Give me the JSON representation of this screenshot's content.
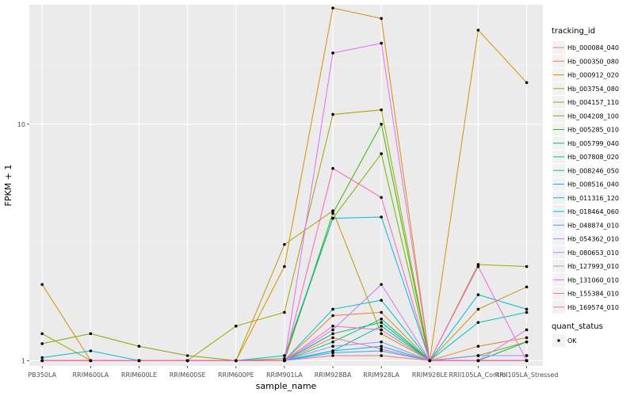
{
  "chart_data": {
    "type": "line",
    "xlabel": "sample_name",
    "ylabel": "FPKM + 1",
    "y_scale": "log10",
    "ylim": [
      0.95,
      32
    ],
    "y_ticks": [
      1,
      10
    ],
    "y_tick_labels": [
      "1",
      "10"
    ],
    "categories": [
      "PB350LA",
      "RRIM600LA",
      "RRIM600LE",
      "RRIM600SE",
      "RRIM600PE",
      "RRIM901LA",
      "RRIM928BA",
      "RRIM928LA",
      "RRIM928LE",
      "RRII105LA_Control",
      "RRII105LA_Stressed"
    ],
    "legend_title": "tracking_id",
    "legend2_title": "quant_status",
    "legend2_entries": [
      {
        "label": "OK",
        "color": "#000000"
      }
    ],
    "series": [
      {
        "name": "Hb_000084_040",
        "color": "#F8766D",
        "values": [
          1.0,
          1.0,
          1.0,
          1.0,
          1.0,
          1.0,
          1.05,
          1.05,
          1.0,
          1.0,
          1.0
        ]
      },
      {
        "name": "Hb_000350_080",
        "color": "#EA8331",
        "values": [
          1.0,
          1.0,
          1.0,
          1.0,
          1.0,
          1.0,
          1.55,
          1.6,
          1.0,
          1.15,
          1.25
        ]
      },
      {
        "name": "Hb_000912_020",
        "color": "#D89000",
        "values": [
          2.1,
          1.0,
          1.0,
          1.0,
          1.0,
          2.5,
          31.0,
          28.0,
          1.0,
          25.0,
          15.0
        ]
      },
      {
        "name": "Hb_003754_080",
        "color": "#C09B00",
        "values": [
          1.0,
          1.0,
          1.0,
          1.0,
          1.0,
          3.1,
          4.3,
          1.3,
          1.0,
          1.65,
          2.05
        ]
      },
      {
        "name": "Hb_004157_110",
        "color": "#A3A500",
        "values": [
          1.3,
          1.0,
          1.0,
          1.0,
          1.4,
          1.6,
          11.0,
          11.5,
          1.0,
          2.55,
          2.5
        ]
      },
      {
        "name": "Hb_004208_100",
        "color": "#7CAE00",
        "values": [
          1.18,
          1.3,
          1.15,
          1.05,
          1.0,
          1.02,
          4.0,
          7.5,
          1.0,
          1.05,
          1.2
        ]
      },
      {
        "name": "Hb_005285_010",
        "color": "#39B600",
        "values": [
          1.0,
          1.0,
          1.0,
          1.0,
          1.0,
          1.0,
          4.2,
          10.0,
          1.0,
          1.05,
          1.05
        ]
      },
      {
        "name": "Hb_005799_040",
        "color": "#00BB4E",
        "values": [
          1.0,
          1.0,
          1.0,
          1.0,
          1.0,
          1.0,
          1.3,
          1.45,
          1.0,
          1.0,
          1.2
        ]
      },
      {
        "name": "Hb_007808_020",
        "color": "#00BF7D",
        "values": [
          1.0,
          1.0,
          1.0,
          1.0,
          1.0,
          1.0,
          1.2,
          1.5,
          1.0,
          1.0,
          1.0
        ]
      },
      {
        "name": "Hb_008246_050",
        "color": "#00C1A3",
        "values": [
          1.0,
          1.0,
          1.0,
          1.0,
          1.0,
          1.0,
          1.1,
          1.4,
          1.0,
          1.0,
          1.0
        ]
      },
      {
        "name": "Hb_008516_040",
        "color": "#00BFC4",
        "values": [
          1.0,
          1.0,
          1.0,
          1.0,
          1.0,
          1.0,
          1.65,
          1.8,
          1.0,
          1.45,
          1.6
        ]
      },
      {
        "name": "Hb_011316_120",
        "color": "#00BAE0",
        "values": [
          1.03,
          1.1,
          1.0,
          1.0,
          1.0,
          1.05,
          4.0,
          4.05,
          1.0,
          1.9,
          1.65
        ]
      },
      {
        "name": "Hb_018464_060",
        "color": "#00B0F6",
        "values": [
          1.0,
          1.0,
          1.0,
          1.0,
          1.0,
          1.0,
          1.1,
          1.15,
          1.0,
          1.0,
          1.0
        ]
      },
      {
        "name": "Hb_048874_010",
        "color": "#35A2FF",
        "values": [
          1.0,
          1.0,
          1.0,
          1.0,
          1.0,
          1.0,
          1.08,
          1.1,
          1.0,
          1.0,
          1.0
        ]
      },
      {
        "name": "Hb_054362_010",
        "color": "#9590FF",
        "values": [
          1.0,
          1.0,
          1.0,
          1.0,
          1.0,
          1.0,
          1.15,
          1.2,
          1.0,
          1.05,
          1.05
        ]
      },
      {
        "name": "Hb_080653_010",
        "color": "#C77CFF",
        "values": [
          1.0,
          1.0,
          1.0,
          1.0,
          1.0,
          1.0,
          1.35,
          2.1,
          1.0,
          1.0,
          1.35
        ]
      },
      {
        "name": "Hb_127993_010",
        "color": "#E76BF3",
        "values": [
          1.0,
          1.0,
          1.0,
          1.0,
          1.0,
          1.0,
          20.0,
          22.0,
          1.0,
          1.0,
          1.0
        ]
      },
      {
        "name": "Hb_131060_010",
        "color": "#FA62DB",
        "values": [
          1.0,
          1.0,
          1.0,
          1.0,
          1.0,
          1.0,
          1.4,
          1.35,
          1.0,
          2.5,
          1.0
        ]
      },
      {
        "name": "Hb_155384_010",
        "color": "#FF62BC",
        "values": [
          1.0,
          1.0,
          1.0,
          1.0,
          1.0,
          1.0,
          6.5,
          4.9,
          1.0,
          1.0,
          1.0
        ]
      },
      {
        "name": "Hb_169574_010",
        "color": "#FF6C91",
        "values": [
          1.0,
          1.0,
          1.0,
          1.0,
          1.0,
          1.0,
          1.25,
          1.12,
          1.0,
          1.0,
          1.0
        ]
      }
    ]
  }
}
